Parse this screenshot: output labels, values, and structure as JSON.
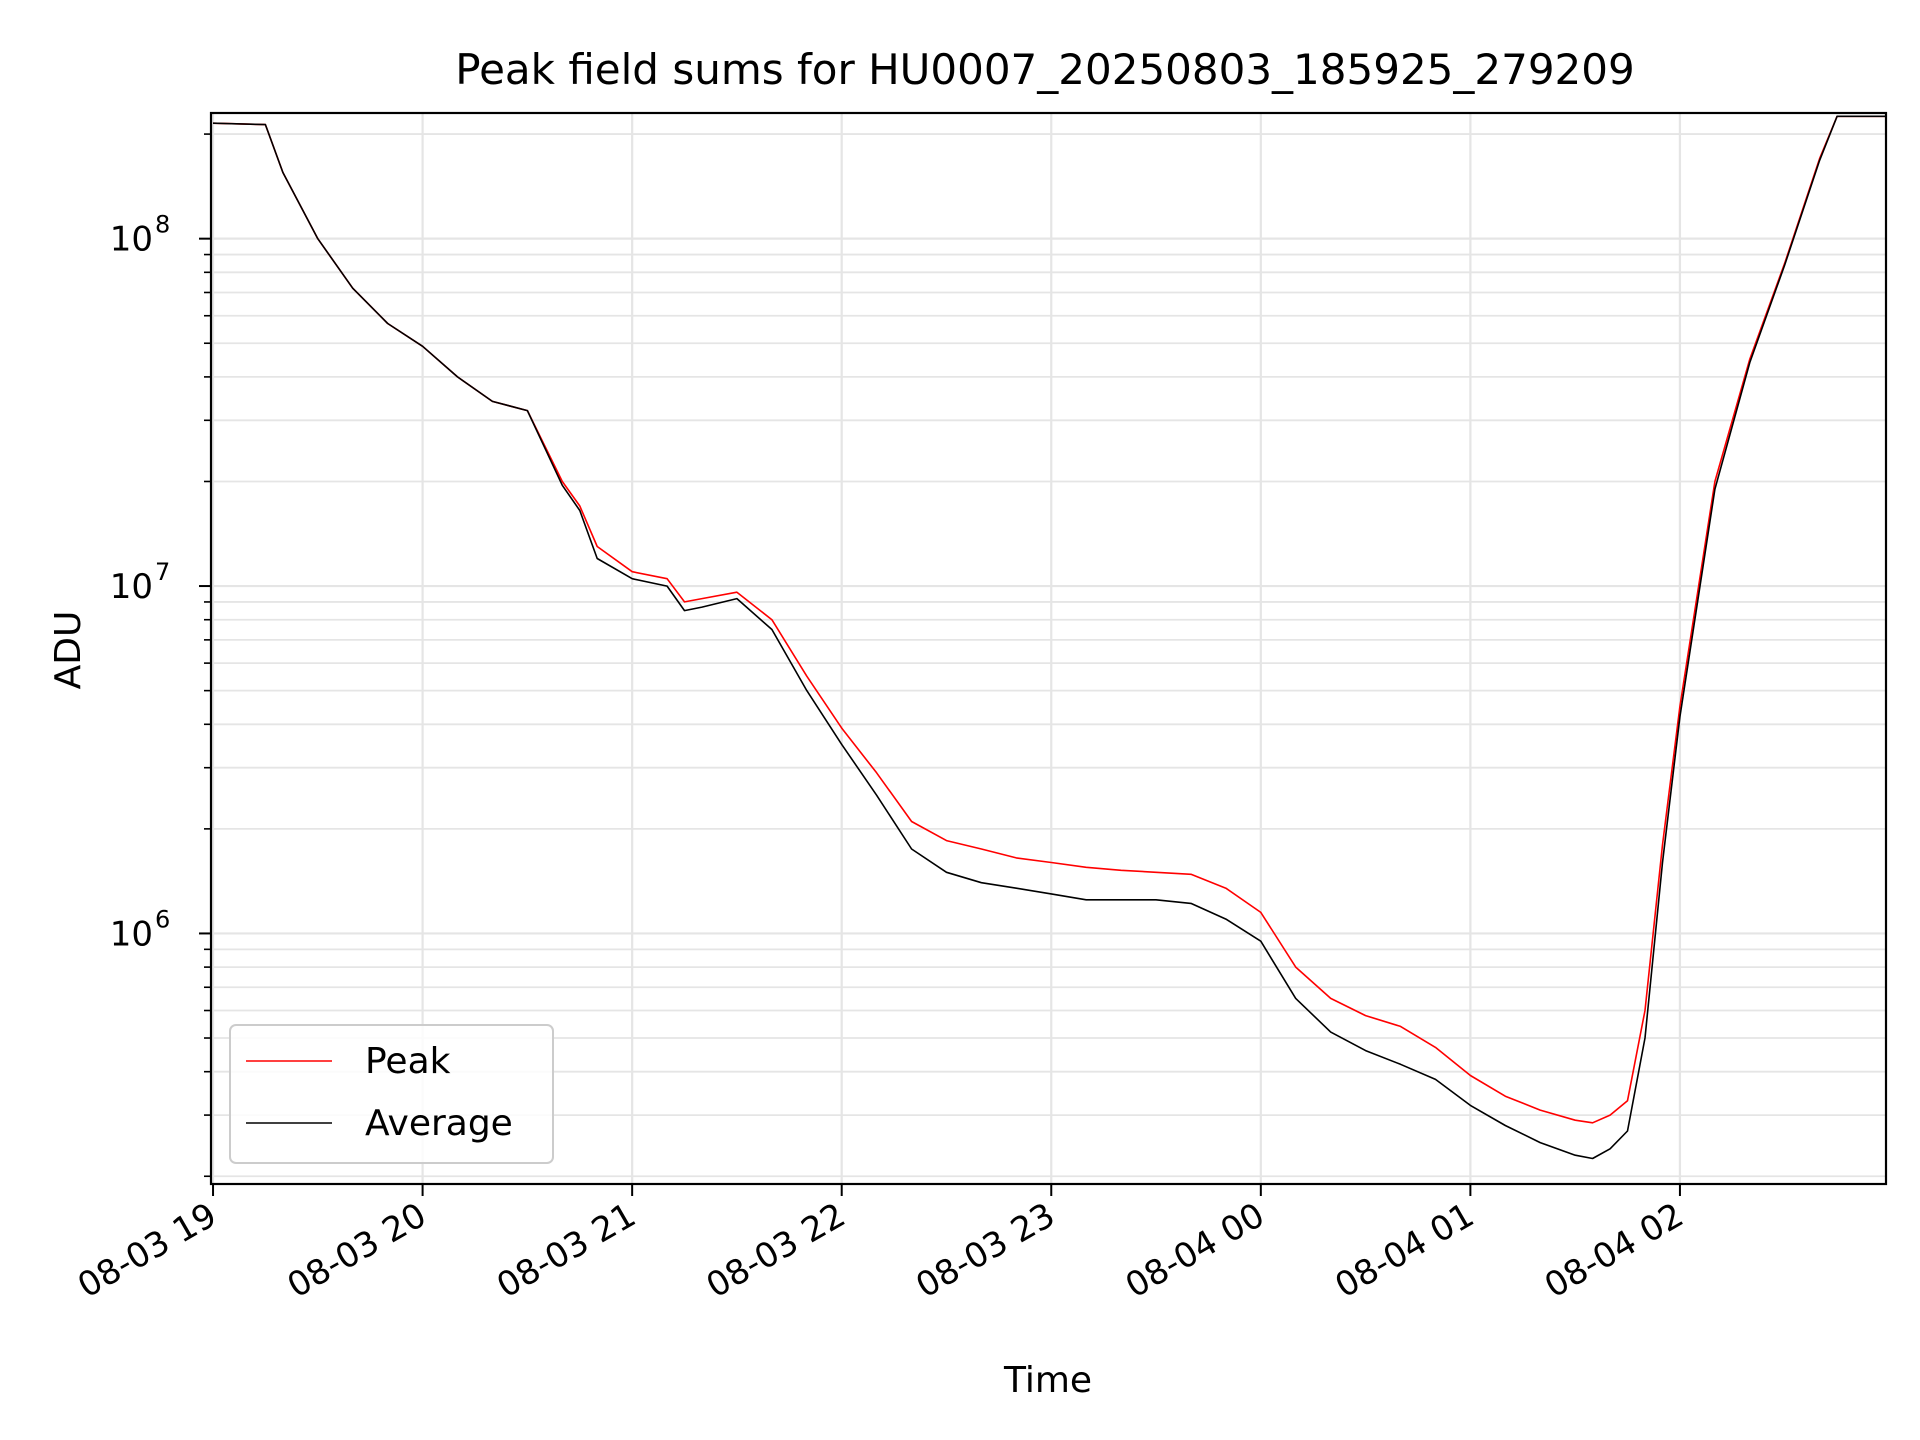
{
  "chart_data": {
    "type": "line",
    "title": "Peak field sums for HU0007_20250803_185925_279209",
    "xlabel": "Time",
    "ylabel": "ADU",
    "x_start": "2025-08-03 18:59:25",
    "x_end": "2025-08-04 02:59:00",
    "xticks": [
      "08-03 19",
      "08-03 20",
      "08-03 21",
      "08-03 22",
      "08-03 23",
      "08-04 00",
      "08-04 01",
      "08-04 02"
    ],
    "yscale": "log",
    "ylim": [
      190000,
      230000000
    ],
    "yticks": [
      {
        "base": "10",
        "exp": "6",
        "value": 1000000
      },
      {
        "base": "10",
        "exp": "7",
        "value": 10000000
      },
      {
        "base": "10",
        "exp": "8",
        "value": 100000000
      }
    ],
    "grid": true,
    "legend": {
      "position": "lower-left",
      "entries": [
        "Peak",
        "Average"
      ]
    },
    "colors": {
      "Peak": "#ff0000",
      "Average": "#000000",
      "grid": "#e5e5e5"
    },
    "series": [
      {
        "name": "Peak",
        "x": [
          "2025-08-03 19:00",
          "2025-08-03 19:15",
          "2025-08-03 19:20",
          "2025-08-03 19:30",
          "2025-08-03 19:40",
          "2025-08-03 19:50",
          "2025-08-03 20:00",
          "2025-08-03 20:10",
          "2025-08-03 20:20",
          "2025-08-03 20:30",
          "2025-08-03 20:40",
          "2025-08-03 20:45",
          "2025-08-03 20:50",
          "2025-08-03 21:00",
          "2025-08-03 21:10",
          "2025-08-03 21:15",
          "2025-08-03 21:20",
          "2025-08-03 21:30",
          "2025-08-03 21:40",
          "2025-08-03 21:50",
          "2025-08-03 22:00",
          "2025-08-03 22:10",
          "2025-08-03 22:20",
          "2025-08-03 22:30",
          "2025-08-03 22:40",
          "2025-08-03 22:50",
          "2025-08-03 23:00",
          "2025-08-03 23:10",
          "2025-08-03 23:20",
          "2025-08-03 23:30",
          "2025-08-03 23:40",
          "2025-08-03 23:50",
          "2025-08-04 00:00",
          "2025-08-04 00:10",
          "2025-08-04 00:20",
          "2025-08-04 00:30",
          "2025-08-04 00:40",
          "2025-08-04 00:50",
          "2025-08-04 01:00",
          "2025-08-04 01:10",
          "2025-08-04 01:20",
          "2025-08-04 01:30",
          "2025-08-04 01:35",
          "2025-08-04 01:40",
          "2025-08-04 01:45",
          "2025-08-04 01:50",
          "2025-08-04 01:55",
          "2025-08-04 02:00",
          "2025-08-04 02:10",
          "2025-08-04 02:20",
          "2025-08-04 02:30",
          "2025-08-04 02:40",
          "2025-08-04 02:45",
          "2025-08-04 02:59"
        ],
        "y": [
          215000000,
          213000000,
          155000000,
          100000000,
          72000000,
          57000000,
          49000000,
          40000000,
          34000000,
          32000000,
          20000000,
          17000000,
          13000000,
          11000000,
          10500000,
          9000000,
          9200000,
          9600000,
          8000000,
          5500000,
          3900000,
          2900000,
          2100000,
          1850000,
          1750000,
          1650000,
          1600000,
          1550000,
          1520000,
          1500000,
          1480000,
          1350000,
          1150000,
          800000,
          650000,
          580000,
          540000,
          470000,
          390000,
          340000,
          310000,
          290000,
          285000,
          300000,
          330000,
          600000,
          1800000,
          4500000,
          20000000,
          45000000,
          85000000,
          170000000,
          225000000,
          225000000
        ]
      },
      {
        "name": "Average",
        "x": [
          "2025-08-03 19:00",
          "2025-08-03 19:15",
          "2025-08-03 19:20",
          "2025-08-03 19:30",
          "2025-08-03 19:40",
          "2025-08-03 19:50",
          "2025-08-03 20:00",
          "2025-08-03 20:10",
          "2025-08-03 20:20",
          "2025-08-03 20:30",
          "2025-08-03 20:40",
          "2025-08-03 20:45",
          "2025-08-03 20:50",
          "2025-08-03 21:00",
          "2025-08-03 21:10",
          "2025-08-03 21:15",
          "2025-08-03 21:20",
          "2025-08-03 21:30",
          "2025-08-03 21:40",
          "2025-08-03 21:50",
          "2025-08-03 22:00",
          "2025-08-03 22:10",
          "2025-08-03 22:20",
          "2025-08-03 22:30",
          "2025-08-03 22:40",
          "2025-08-03 22:50",
          "2025-08-03 23:00",
          "2025-08-03 23:10",
          "2025-08-03 23:20",
          "2025-08-03 23:30",
          "2025-08-03 23:40",
          "2025-08-03 23:50",
          "2025-08-04 00:00",
          "2025-08-04 00:10",
          "2025-08-04 00:20",
          "2025-08-04 00:30",
          "2025-08-04 00:40",
          "2025-08-04 00:50",
          "2025-08-04 01:00",
          "2025-08-04 01:10",
          "2025-08-04 01:20",
          "2025-08-04 01:30",
          "2025-08-04 01:35",
          "2025-08-04 01:40",
          "2025-08-04 01:45",
          "2025-08-04 01:50",
          "2025-08-04 01:55",
          "2025-08-04 02:00",
          "2025-08-04 02:10",
          "2025-08-04 02:20",
          "2025-08-04 02:30",
          "2025-08-04 02:40",
          "2025-08-04 02:45",
          "2025-08-04 02:59"
        ],
        "y": [
          215000000,
          213000000,
          155000000,
          100000000,
          72000000,
          57000000,
          49000000,
          40000000,
          34000000,
          32000000,
          19500000,
          16500000,
          12000000,
          10500000,
          10000000,
          8500000,
          8700000,
          9200000,
          7500000,
          5000000,
          3500000,
          2500000,
          1750000,
          1500000,
          1400000,
          1350000,
          1300000,
          1250000,
          1250000,
          1250000,
          1220000,
          1100000,
          950000,
          650000,
          520000,
          460000,
          420000,
          380000,
          320000,
          280000,
          250000,
          230000,
          225000,
          240000,
          270000,
          500000,
          1600000,
          4200000,
          19000000,
          44000000,
          84000000,
          168000000,
          225000000,
          225000000
        ]
      }
    ]
  }
}
